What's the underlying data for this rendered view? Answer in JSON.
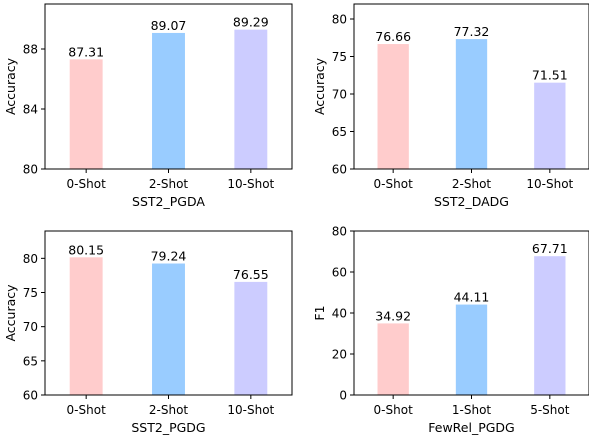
{
  "chart_data": [
    {
      "type": "bar",
      "categories": [
        "0-Shot",
        "2-Shot",
        "10-Shot"
      ],
      "values": [
        87.31,
        89.07,
        89.29
      ],
      "value_labels": [
        "87.31",
        "89.07",
        "89.29"
      ],
      "xlabel": "SST2_PGDA",
      "ylabel": "Accuracy",
      "ylim": [
        80,
        91
      ],
      "yticks": [
        80,
        84,
        88
      ],
      "ytick_labels": [
        "80",
        "84",
        "88"
      ],
      "colors": [
        "#ffcccc",
        "#99ccff",
        "#ccccff"
      ],
      "grid": false
    },
    {
      "type": "bar",
      "categories": [
        "0-Shot",
        "2-Shot",
        "10-Shot"
      ],
      "values": [
        76.66,
        77.32,
        71.51
      ],
      "value_labels": [
        "76.66",
        "77.32",
        "71.51"
      ],
      "xlabel": "SST2_DADG",
      "ylabel": "Accuracy",
      "ylim": [
        60,
        82
      ],
      "yticks": [
        60,
        65,
        70,
        75,
        80
      ],
      "ytick_labels": [
        "60",
        "65",
        "70",
        "75",
        "80"
      ],
      "colors": [
        "#ffcccc",
        "#99ccff",
        "#ccccff"
      ],
      "grid": false
    },
    {
      "type": "bar",
      "categories": [
        "0-Shot",
        "2-Shot",
        "10-Shot"
      ],
      "values": [
        80.15,
        79.24,
        76.55
      ],
      "value_labels": [
        "80.15",
        "79.24",
        "76.55"
      ],
      "xlabel": "SST2_PGDG",
      "ylabel": "Accuracy",
      "ylim": [
        60,
        84
      ],
      "yticks": [
        60,
        65,
        70,
        75,
        80
      ],
      "ytick_labels": [
        "60",
        "65",
        "70",
        "75",
        "80"
      ],
      "colors": [
        "#ffcccc",
        "#99ccff",
        "#ccccff"
      ],
      "grid": false
    },
    {
      "type": "bar",
      "categories": [
        "0-Shot",
        "1-Shot",
        "5-Shot"
      ],
      "values": [
        34.92,
        44.11,
        67.71
      ],
      "value_labels": [
        "34.92",
        "44.11",
        "67.71"
      ],
      "xlabel": "FewRel_PGDG",
      "ylabel": "F1",
      "ylim": [
        0,
        80
      ],
      "yticks": [
        0,
        20,
        40,
        60,
        80
      ],
      "ytick_labels": [
        "0",
        "20",
        "40",
        "60",
        "80"
      ],
      "colors": [
        "#ffcccc",
        "#99ccff",
        "#ccccff"
      ],
      "grid": false
    }
  ]
}
